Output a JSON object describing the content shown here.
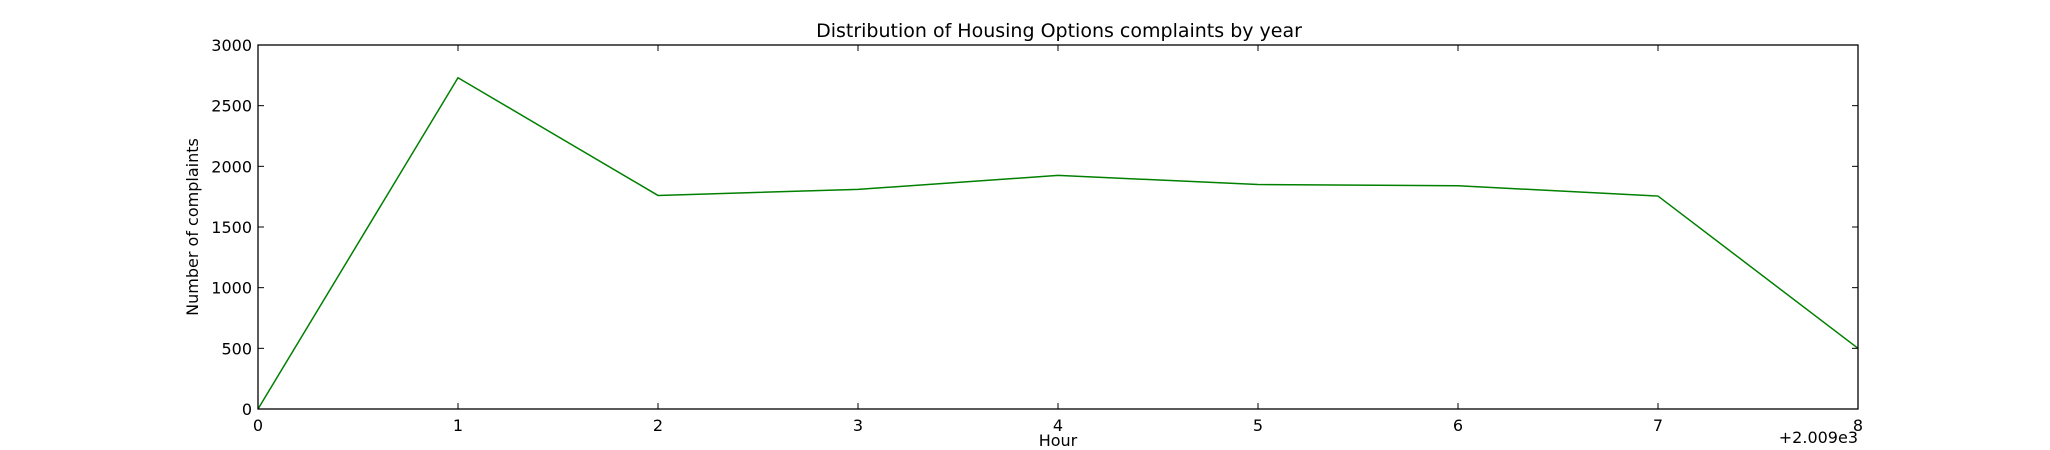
{
  "chart_data": {
    "type": "line",
    "title": "Distribution of  Housing Options complaints by year",
    "xlabel": "Hour",
    "ylabel": "Number of complaints",
    "x_offset_label": "+2.009e3",
    "x": [
      0,
      1,
      2,
      3,
      4,
      5,
      6,
      7,
      8
    ],
    "xlim": [
      0,
      8
    ],
    "ylim": [
      0,
      3000
    ],
    "x_ticks": [
      0,
      1,
      2,
      3,
      4,
      5,
      6,
      7,
      8
    ],
    "y_ticks": [
      0,
      500,
      1000,
      1500,
      2000,
      2500,
      3000
    ],
    "grid": false,
    "series": [
      {
        "values": [
          0,
          2730,
          1760,
          1810,
          1925,
          1850,
          1840,
          1755,
          500
        ],
        "color": "#008000"
      }
    ]
  }
}
